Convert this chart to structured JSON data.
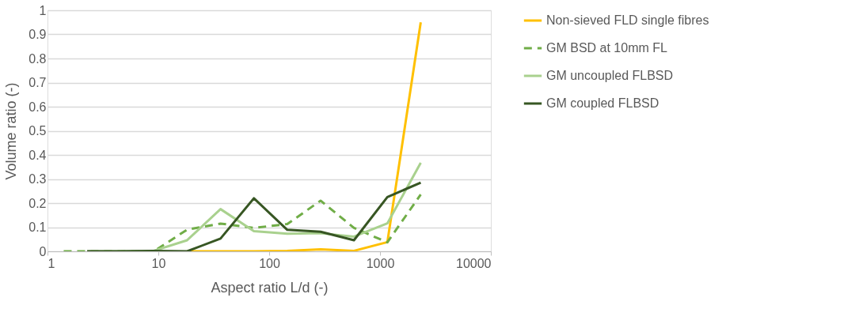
{
  "chart_data": {
    "type": "line",
    "xlabel": "Aspect ratio L/d (-)",
    "ylabel": "Volume ratio (-)",
    "log": "x",
    "xlim": [
      1,
      10000
    ],
    "xticks": [
      1,
      10,
      100,
      1000,
      10000
    ],
    "ylim": [
      0,
      1
    ],
    "yticks": [
      0,
      0.1,
      0.2,
      0.3,
      0.4,
      0.5,
      0.6,
      0.7,
      0.8,
      0.9,
      1
    ],
    "grid": "y",
    "legend": "right",
    "marker": "none",
    "series": [
      {
        "name": "Non-sieved FLD single fibres",
        "color": "#ffc000",
        "line_style": "solid",
        "x": [
          18.2,
          36.4,
          72.8,
          145.6,
          291,
          582,
          1165,
          2330
        ],
        "values": [
          0,
          0,
          0,
          0.002,
          0.008,
          0.002,
          0.038,
          0.95
        ]
      },
      {
        "name": "GM BSD at 10mm FL",
        "color": "#70ad47",
        "line_style": "dashed",
        "x": [
          1.4,
          2.28,
          4.55,
          9.1,
          18.2,
          36.4,
          72.8,
          145.6,
          291,
          582,
          1165,
          2330
        ],
        "values": [
          0,
          0,
          0,
          0,
          0.09,
          0.115,
          0.097,
          0.113,
          0.21,
          0.097,
          0.037,
          0.236
        ]
      },
      {
        "name": "GM uncoupled FLBSD",
        "color": "#a9d18e",
        "line_style": "solid",
        "x": [
          2.28,
          4.55,
          9.1,
          18.2,
          36.4,
          72.8,
          145.6,
          291,
          582,
          1165,
          2330
        ],
        "values": [
          0,
          0,
          0.002,
          0.046,
          0.175,
          0.084,
          0.073,
          0.075,
          0.061,
          0.116,
          0.367
        ]
      },
      {
        "name": "GM coupled FLBSD",
        "color": "#375623",
        "line_style": "solid",
        "x": [
          2.28,
          4.55,
          9.1,
          18.2,
          36.4,
          72.8,
          145.6,
          291,
          582,
          1165,
          2330
        ],
        "values": [
          0,
          0,
          0.002,
          0,
          0.053,
          0.22,
          0.089,
          0.081,
          0.046,
          0.225,
          0.285
        ]
      }
    ]
  }
}
